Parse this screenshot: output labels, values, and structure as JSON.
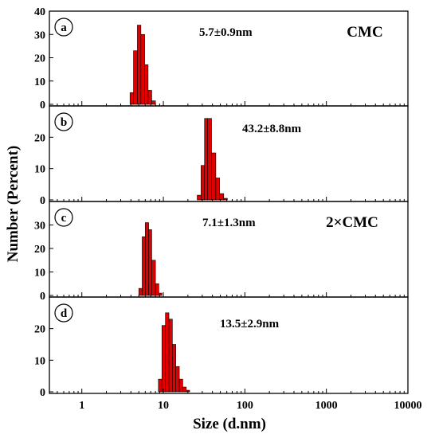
{
  "chart_data": {
    "type": "bar",
    "xlabel": "Size (d.nm)",
    "ylabel": "Number (Percent)",
    "xscale": "log",
    "xlim": [
      0.4,
      10000
    ],
    "xticks": [
      1,
      10,
      100,
      1000,
      10000
    ],
    "bar_color": "#e00000",
    "panels": [
      {
        "label": "a",
        "annotation": "5.7±0.9nm",
        "note": "CMC",
        "ylim": [
          0,
          40
        ],
        "yticks": [
          0,
          10,
          20,
          30,
          40
        ],
        "bins": [
          {
            "x0": 3.9,
            "x1": 4.3,
            "y": 5
          },
          {
            "x0": 4.3,
            "x1": 4.8,
            "y": 23
          },
          {
            "x0": 4.8,
            "x1": 5.3,
            "y": 34
          },
          {
            "x0": 5.3,
            "x1": 5.9,
            "y": 30
          },
          {
            "x0": 5.9,
            "x1": 6.5,
            "y": 17
          },
          {
            "x0": 6.5,
            "x1": 7.2,
            "y": 6
          },
          {
            "x0": 7.2,
            "x1": 8.0,
            "y": 1.5
          }
        ]
      },
      {
        "label": "b",
        "annotation": "43.2±8.8nm",
        "note": "",
        "ylim": [
          0,
          30
        ],
        "yticks": [
          0,
          10,
          20
        ],
        "bins": [
          {
            "x0": 26,
            "x1": 29,
            "y": 1.5
          },
          {
            "x0": 29,
            "x1": 32,
            "y": 11
          },
          {
            "x0": 32,
            "x1": 35,
            "y": 26
          },
          {
            "x0": 35,
            "x1": 39,
            "y": 26
          },
          {
            "x0": 39,
            "x1": 44,
            "y": 15
          },
          {
            "x0": 44,
            "x1": 49,
            "y": 7
          },
          {
            "x0": 49,
            "x1": 55,
            "y": 2
          },
          {
            "x0": 55,
            "x1": 61,
            "y": 0.5
          }
        ]
      },
      {
        "label": "c",
        "annotation": "7.1±1.3nm",
        "note": "2×CMC",
        "ylim": [
          0,
          40
        ],
        "yticks": [
          0,
          10,
          20,
          30
        ],
        "bins": [
          {
            "x0": 5.0,
            "x1": 5.5,
            "y": 3
          },
          {
            "x0": 5.5,
            "x1": 6.0,
            "y": 25
          },
          {
            "x0": 6.0,
            "x1": 6.6,
            "y": 31
          },
          {
            "x0": 6.6,
            "x1": 7.2,
            "y": 28
          },
          {
            "x0": 7.2,
            "x1": 8.0,
            "y": 15
          },
          {
            "x0": 8.0,
            "x1": 8.8,
            "y": 5
          },
          {
            "x0": 8.8,
            "x1": 9.6,
            "y": 1
          }
        ]
      },
      {
        "label": "d",
        "annotation": "13.5±2.9nm",
        "note": "",
        "ylim": [
          0,
          30
        ],
        "yticks": [
          0,
          10,
          20
        ],
        "bins": [
          {
            "x0": 8.7,
            "x1": 9.6,
            "y": 4
          },
          {
            "x0": 9.6,
            "x1": 10.6,
            "y": 21
          },
          {
            "x0": 10.6,
            "x1": 11.7,
            "y": 25
          },
          {
            "x0": 11.7,
            "x1": 12.9,
            "y": 23
          },
          {
            "x0": 12.9,
            "x1": 14.2,
            "y": 15
          },
          {
            "x0": 14.2,
            "x1": 15.7,
            "y": 8
          },
          {
            "x0": 15.7,
            "x1": 17.3,
            "y": 4
          },
          {
            "x0": 17.3,
            "x1": 19.1,
            "y": 1.5
          },
          {
            "x0": 19.1,
            "x1": 21.0,
            "y": 0.5
          }
        ]
      }
    ]
  }
}
